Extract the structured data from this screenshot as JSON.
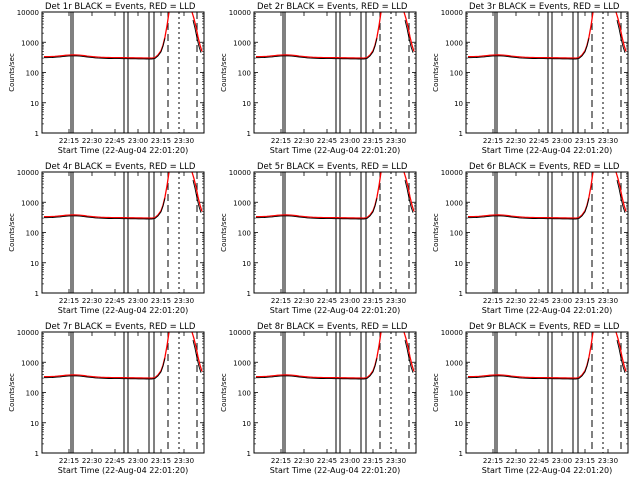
{
  "chart_data": [
    {
      "type": "line",
      "title": "Det 1r BLACK = Events, RED = LLD",
      "xlabel": "Start Time (22-Aug-04 22:01:20)",
      "ylabel": "Counts/sec",
      "yscale": "log",
      "ylim": [
        1,
        10000
      ],
      "y_ticks": [
        "1",
        "10",
        "100",
        "1000",
        "10000"
      ],
      "x_ticks": [
        "22:15",
        "22:30",
        "22:45",
        "23:00",
        "23:15",
        "23:30"
      ],
      "series": [
        {
          "name": "BLACK = Events",
          "color": "#000000"
        },
        {
          "name": "RED = LLD",
          "color": "#ff0000"
        }
      ]
    },
    {
      "type": "line",
      "title": "Det 2r BLACK = Events, RED = LLD",
      "xlabel": "Start Time (22-Aug-04 22:01:20)",
      "ylabel": "Counts/sec",
      "yscale": "log",
      "ylim": [
        1,
        10000
      ],
      "y_ticks": [
        "1",
        "10",
        "100",
        "1000",
        "10000"
      ],
      "x_ticks": [
        "22:15",
        "22:30",
        "22:45",
        "23:00",
        "23:15",
        "23:30"
      ],
      "series": [
        {
          "name": "BLACK = Events",
          "color": "#000000"
        },
        {
          "name": "RED = LLD",
          "color": "#ff0000"
        }
      ]
    },
    {
      "type": "line",
      "title": "Det 3r BLACK = Events, RED = LLD",
      "xlabel": "Start Time (22-Aug-04 22:01:20)",
      "ylabel": "Counts/sec",
      "yscale": "log",
      "ylim": [
        1,
        10000
      ],
      "y_ticks": [
        "1",
        "10",
        "100",
        "1000",
        "10000"
      ],
      "x_ticks": [
        "22:15",
        "22:30",
        "22:45",
        "23:00",
        "23:15",
        "23:30"
      ],
      "series": [
        {
          "name": "BLACK = Events",
          "color": "#000000"
        },
        {
          "name": "RED = LLD",
          "color": "#ff0000"
        }
      ]
    },
    {
      "type": "line",
      "title": "Det 4r BLACK = Events, RED = LLD",
      "xlabel": "Start Time (22-Aug-04 22:01:20)",
      "ylabel": "Counts/sec",
      "yscale": "log",
      "ylim": [
        1,
        10000
      ],
      "y_ticks": [
        "1",
        "10",
        "100",
        "1000",
        "10000"
      ],
      "x_ticks": [
        "22:15",
        "22:30",
        "22:45",
        "23:00",
        "23:15",
        "23:30"
      ],
      "series": [
        {
          "name": "BLACK = Events",
          "color": "#000000"
        },
        {
          "name": "RED = LLD",
          "color": "#ff0000"
        }
      ]
    },
    {
      "type": "line",
      "title": "Det 5r BLACK = Events, RED = LLD",
      "xlabel": "Start Time (22-Aug-04 22:01:20)",
      "ylabel": "Counts/sec",
      "yscale": "log",
      "ylim": [
        1,
        10000
      ],
      "y_ticks": [
        "1",
        "10",
        "100",
        "1000",
        "10000"
      ],
      "x_ticks": [
        "22:15",
        "22:30",
        "22:45",
        "23:00",
        "23:15",
        "23:30"
      ],
      "series": [
        {
          "name": "BLACK = Events",
          "color": "#000000"
        },
        {
          "name": "RED = LLD",
          "color": "#ff0000"
        }
      ]
    },
    {
      "type": "line",
      "title": "Det 6r BLACK = Events, RED = LLD",
      "xlabel": "Start Time (22-Aug-04 22:01:20)",
      "ylabel": "Counts/sec",
      "yscale": "log",
      "ylim": [
        1,
        10000
      ],
      "y_ticks": [
        "1",
        "10",
        "100",
        "1000",
        "10000"
      ],
      "x_ticks": [
        "22:15",
        "22:30",
        "22:45",
        "23:00",
        "23:15",
        "23:30"
      ],
      "series": [
        {
          "name": "BLACK = Events",
          "color": "#000000"
        },
        {
          "name": "RED = LLD",
          "color": "#ff0000"
        }
      ]
    },
    {
      "type": "line",
      "title": "Det 7r BLACK = Events, RED = LLD",
      "xlabel": "Start Time (22-Aug-04 22:01:20)",
      "ylabel": "Counts/sec",
      "yscale": "log",
      "ylim": [
        1,
        10000
      ],
      "y_ticks": [
        "1",
        "10",
        "100",
        "1000",
        "10000"
      ],
      "x_ticks": [
        "22:15",
        "22:30",
        "22:45",
        "23:00",
        "23:15",
        "23:30"
      ],
      "series": [
        {
          "name": "BLACK = Events",
          "color": "#000000"
        },
        {
          "name": "RED = LLD",
          "color": "#ff0000"
        }
      ]
    },
    {
      "type": "line",
      "title": "Det 8r BLACK = Events, RED = LLD",
      "xlabel": "Start Time (22-Aug-04 22:01:20)",
      "ylabel": "Counts/sec",
      "yscale": "log",
      "ylim": [
        1,
        10000
      ],
      "y_ticks": [
        "1",
        "10",
        "100",
        "1000",
        "10000"
      ],
      "x_ticks": [
        "22:15",
        "22:30",
        "22:45",
        "23:00",
        "23:15",
        "23:30"
      ],
      "series": [
        {
          "name": "BLACK = Events",
          "color": "#000000"
        },
        {
          "name": "RED = LLD",
          "color": "#ff0000"
        }
      ]
    },
    {
      "type": "line",
      "title": "Det 9r BLACK = Events, RED = LLD",
      "xlabel": "Start Time (22-Aug-04 22:01:20)",
      "ylabel": "Counts/sec",
      "yscale": "log",
      "ylim": [
        1,
        10000
      ],
      "y_ticks": [
        "1",
        "10",
        "100",
        "1000",
        "10000"
      ],
      "x_ticks": [
        "22:15",
        "22:30",
        "22:45",
        "23:00",
        "23:15",
        "23:30"
      ],
      "series": [
        {
          "name": "BLACK = Events",
          "color": "#000000"
        },
        {
          "name": "RED = LLD",
          "color": "#ff0000"
        }
      ]
    }
  ]
}
